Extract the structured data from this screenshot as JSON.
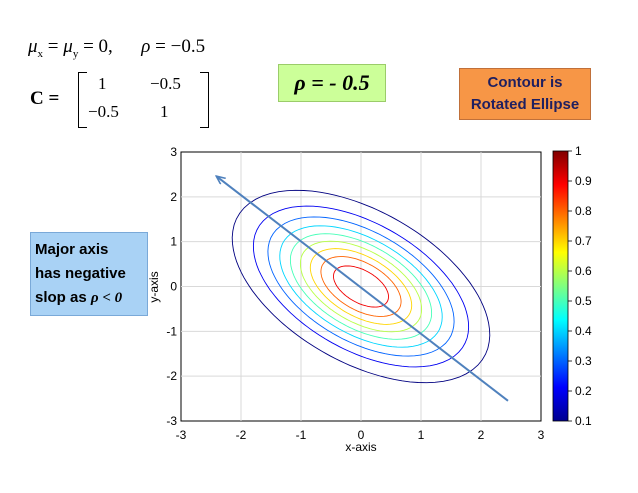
{
  "equations": {
    "mean_mu": "μ",
    "mean_sub_x": "x",
    "mean_eq": "=",
    "mean_sub_y": "y",
    "mean_value": "= 0,",
    "rho_symbol": "ρ",
    "rho_eq": "= −0.5",
    "matrix_lhs": "C =",
    "matrix": [
      [
        "1",
        "−0.5"
      ],
      [
        "−0.5",
        "1"
      ]
    ]
  },
  "callouts": {
    "rho_label": "ρ = - 0.5",
    "contour_lines": [
      "Contour is",
      "Rotated Ellipse"
    ],
    "major_axis_lines": [
      "Major axis",
      "has negative",
      "slop as"
    ],
    "major_axis_condition": "ρ < 0"
  },
  "colors": {
    "rho_box": "#ccff99",
    "contour_box": "#f79646",
    "major_box": "#a9d2f5",
    "arrow": "#4f81bd"
  },
  "chart_data": {
    "type": "contour",
    "title": "",
    "xlabel": "x-axis",
    "ylabel": "y-axis",
    "xlim": [
      -3,
      3
    ],
    "ylim": [
      -3,
      3
    ],
    "xticks": [
      "-3",
      "-2",
      "-1",
      "0",
      "1",
      "2",
      "3"
    ],
    "yticks": [
      "-3",
      "-2",
      "-1",
      "0",
      "1",
      "2",
      "3"
    ],
    "grid": true,
    "distribution": {
      "mu_x": 0,
      "mu_y": 0,
      "rho": -0.5,
      "cov": [
        [
          1,
          -0.5
        ],
        [
          -0.5,
          1
        ]
      ]
    },
    "contour_levels": [
      0.1,
      0.2,
      0.3,
      0.4,
      0.5,
      0.6,
      0.7,
      0.8,
      0.9,
      1.0
    ],
    "colormap": "jet",
    "colorbar": {
      "min": 0.1,
      "max": 1,
      "ticks": [
        "0.1",
        "0.2",
        "0.3",
        "0.4",
        "0.5",
        "0.6",
        "0.7",
        "0.8",
        "0.9",
        "1"
      ]
    },
    "arrow": {
      "from": [
        2.45,
        -2.55
      ],
      "to": [
        -2.4,
        2.45
      ]
    }
  }
}
